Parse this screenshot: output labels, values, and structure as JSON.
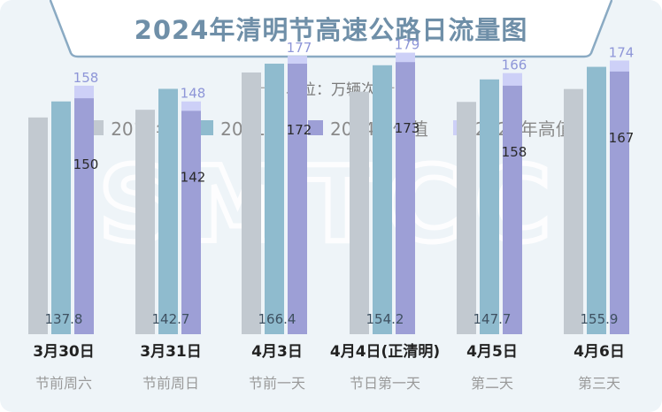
{
  "title": "2024年清明节高速公路日流量图",
  "unit": {
    "dash_left": "-----",
    "label": "单位：万辆次",
    "dash_right": "-----"
  },
  "watermark": "SMTCC",
  "colors": {
    "background": "#eef4f8",
    "banner": "#ffffff",
    "banner_border": "#8aaac3",
    "title": "#6f8fa8",
    "s2019": "#c2c9d0",
    "s2021": "#8fbbce",
    "s2024_low": "#9d9fd6",
    "s2024_high": "#cdd0f7"
  },
  "legend": [
    {
      "label": "2019年",
      "color": "#c2c9d0"
    },
    {
      "label": "2021年",
      "color": "#8fbbce"
    },
    {
      "label": "2024年低值",
      "color": "#9d9fd6"
    },
    {
      "label": "2024年高值",
      "color": "#cdd0f7"
    }
  ],
  "chart_data": {
    "type": "bar",
    "title": "2024年清明节高速公路日流量图",
    "ylabel": "",
    "legend_position": "top",
    "categories": [
      "3月30日",
      "3月31日",
      "4月3日",
      "4月4日(正清明)",
      "4月5日",
      "4月6日"
    ],
    "category_subtitles": [
      "节前周六",
      "节前周日",
      "节前一天",
      "节日第一天",
      "第二天",
      "第三天"
    ],
    "ylim": [
      0,
      190
    ],
    "series": [
      {
        "name": "2019年",
        "values": [
          137.8,
          142.7,
          166.4,
          154.2,
          147.7,
          155.9
        ],
        "labeled": true
      },
      {
        "name": "2021年",
        "values": [
          148,
          156,
          172,
          171,
          162,
          170
        ],
        "labeled": false
      },
      {
        "name": "2024年低值",
        "values": [
          150,
          142,
          172,
          173,
          158,
          167
        ],
        "labeled": true
      },
      {
        "name": "2024年高值",
        "values": [
          158,
          148,
          177,
          179,
          166,
          174
        ],
        "labeled": true
      }
    ]
  }
}
